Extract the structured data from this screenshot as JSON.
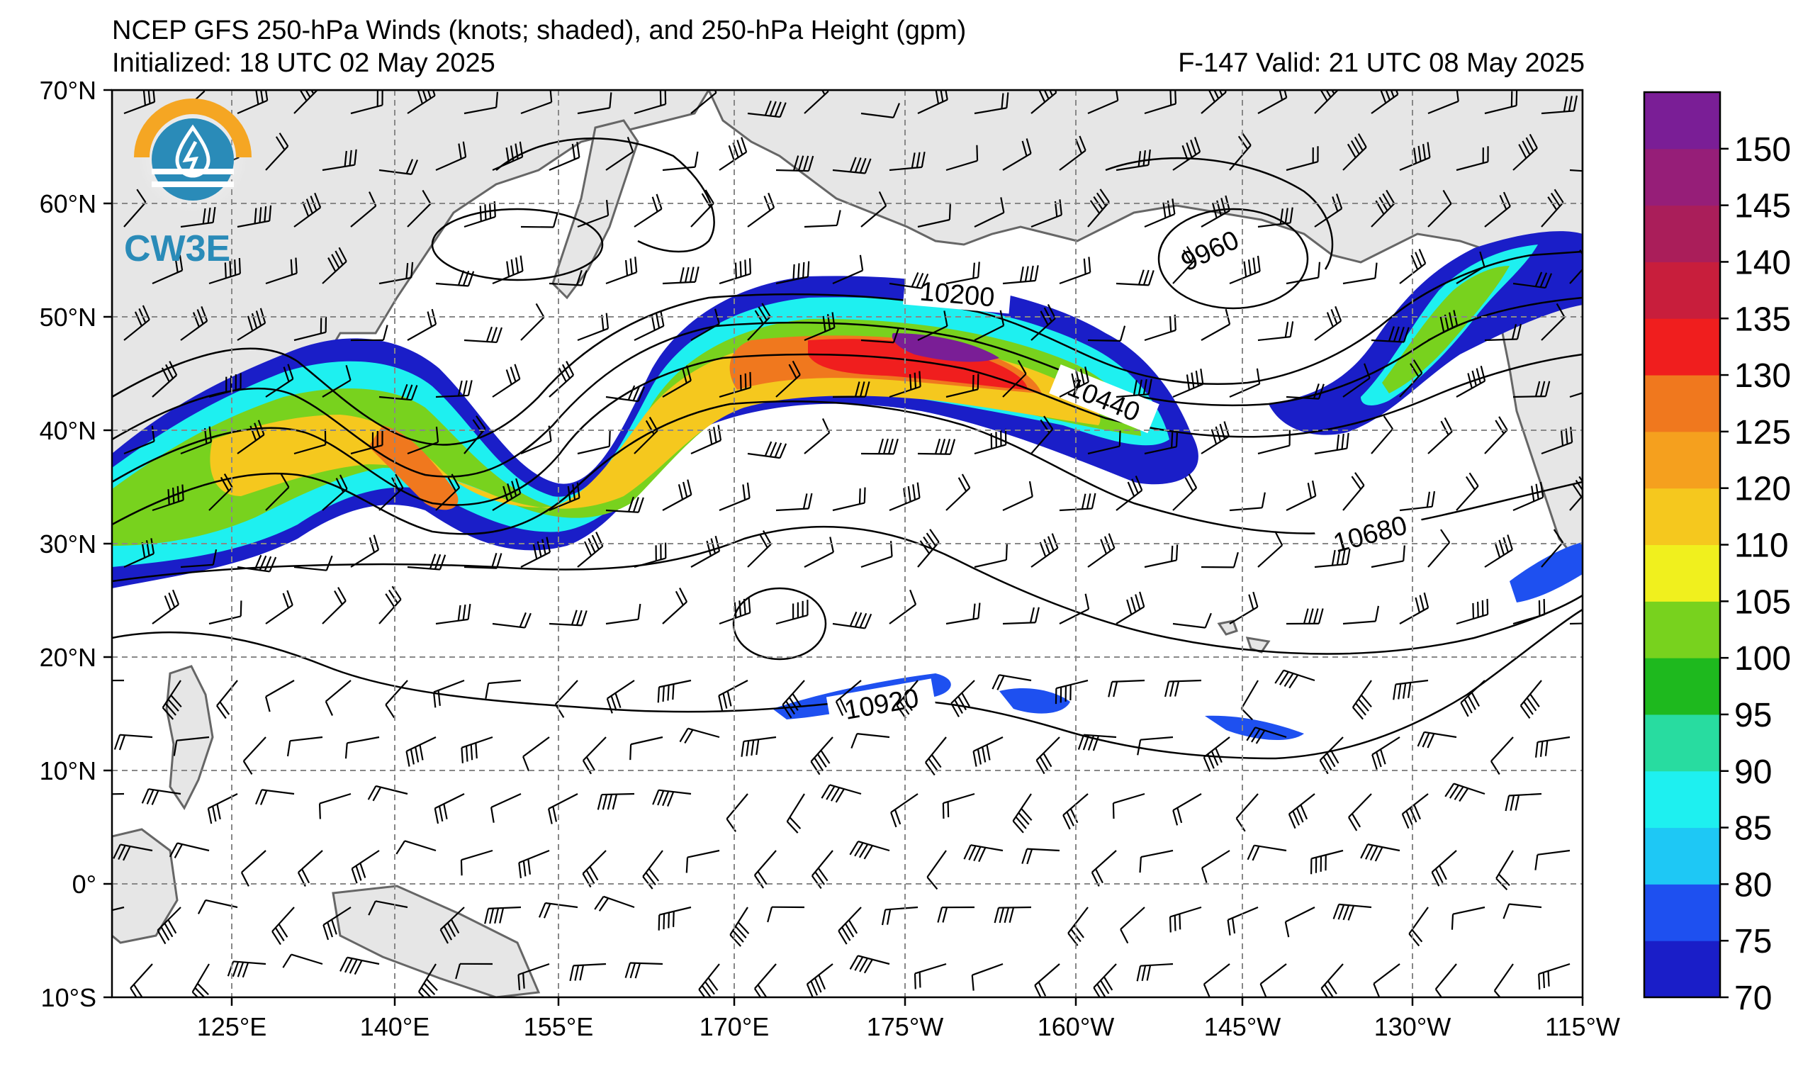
{
  "header": {
    "title": "NCEP GFS 250-hPa Winds (knots; shaded), and 250-hPa Height (gpm)",
    "initialized": "Initialized: 18 UTC 02 May 2025",
    "valid": "F-147  Valid: 21 UTC 08 May 2025"
  },
  "logo": {
    "text": "CW3E",
    "icon": "cw3e-water-drop-logo-icon"
  },
  "map": {
    "lat_labels": [
      "70°N",
      "60°N",
      "50°N",
      "40°N",
      "30°N",
      "20°N",
      "10°N",
      "0°",
      "10°S"
    ],
    "lon_labels": [
      "125°E",
      "140°E",
      "155°E",
      "170°E",
      "175°W",
      "160°W",
      "145°W",
      "130°W",
      "115°W"
    ],
    "lat_range": [
      -10,
      70
    ],
    "lon_range_east": [
      110,
      245
    ],
    "grid": "dashed",
    "contour_labels": [
      "9960",
      "10200",
      "10440",
      "10680",
      "10920"
    ],
    "land_color": "#e6e6e6",
    "ocean_color": "#ffffff"
  },
  "colorbar": {
    "levels": [
      "70",
      "75",
      "80",
      "85",
      "90",
      "95",
      "100",
      "105",
      "110",
      "120",
      "125",
      "130",
      "135",
      "140",
      "145",
      "150"
    ],
    "colors": [
      "#1a1ec8",
      "#1e50f0",
      "#1ec8f5",
      "#1ef0f0",
      "#28dca0",
      "#1eb91e",
      "#78d21e",
      "#f0f01e",
      "#f5c81e",
      "#f5a01e",
      "#f0781e",
      "#f01e1e",
      "#c81e3c",
      "#aa1e5a",
      "#961e78",
      "#7a1e96"
    ]
  }
}
